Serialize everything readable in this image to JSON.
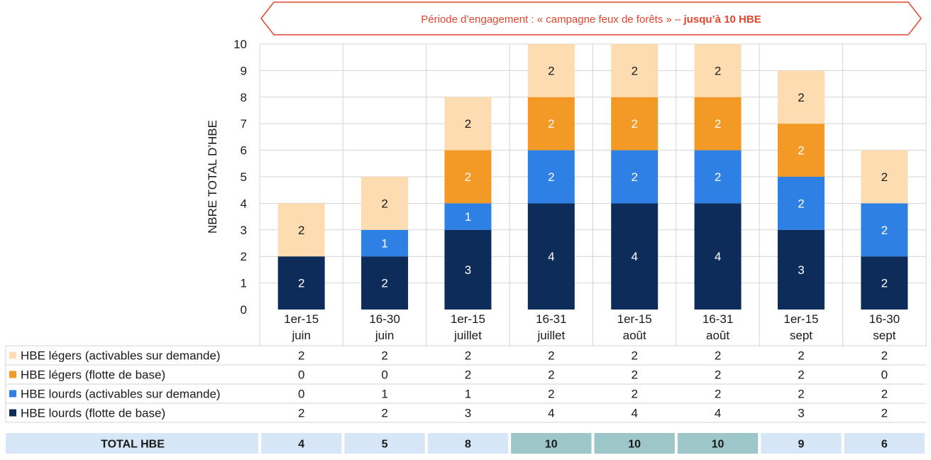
{
  "banner": {
    "text_regular": "Période d’engagement : « campagne feux de forêts » – ",
    "text_bold": "jusqu’à 10 HBE",
    "color": "#e2462d"
  },
  "chart_data": {
    "type": "bar",
    "stacked": true,
    "ylabel": "NBRE TOTAL D’HBE",
    "xlabel": "",
    "ylim": [
      0,
      10
    ],
    "yticks": [
      "0",
      "1",
      "2",
      "3",
      "4",
      "5",
      "6",
      "7",
      "8",
      "9",
      "10"
    ],
    "grid": true,
    "legend_placement": "bottom-left (data table rows)",
    "categories": [
      [
        "1er-15",
        "juin"
      ],
      [
        "16-30",
        "juin"
      ],
      [
        "1er-15",
        "juillet"
      ],
      [
        "16-31",
        "juillet"
      ],
      [
        "1er-15",
        "août"
      ],
      [
        "16-31",
        "août"
      ],
      [
        "1er-15",
        "sept"
      ],
      [
        "16-30",
        "sept"
      ]
    ],
    "series": [
      {
        "name": "HBE lourds (flotte de base)",
        "color": "#0d2c5a",
        "text_color": "#ffffff",
        "values": [
          2,
          2,
          3,
          4,
          4,
          4,
          3,
          2
        ]
      },
      {
        "name": "HBE lourds (activables sur demande)",
        "color": "#2f80e4",
        "text_color": "#ffffff",
        "values": [
          0,
          1,
          1,
          2,
          2,
          2,
          2,
          2
        ]
      },
      {
        "name": "HBE légers (flotte de base)",
        "color": "#f29a25",
        "text_color": "#ffffff",
        "values": [
          0,
          0,
          2,
          2,
          2,
          2,
          2,
          0
        ]
      },
      {
        "name": "HBE légers (activables sur demande)",
        "color": "#fcdcb0",
        "text_color": "#1a1a1a",
        "values": [
          2,
          2,
          2,
          2,
          2,
          2,
          2,
          2
        ]
      }
    ],
    "table_row_order": [
      3,
      2,
      1,
      0
    ],
    "total": {
      "label": "TOTAL HBE",
      "values": [
        "4",
        "5",
        "8",
        "10",
        "10",
        "10",
        "9",
        "6"
      ],
      "cell_color": "#d6e6f6",
      "highlight_color": "#9cc6c8",
      "highlight_indices": [
        3,
        4,
        5
      ]
    }
  }
}
